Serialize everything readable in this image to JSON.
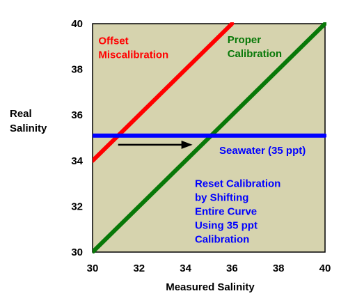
{
  "chart_data": {
    "type": "line",
    "title": "",
    "xlabel": "Measured Salinity",
    "ylabel_lines": [
      "Real",
      "Salinity"
    ],
    "xlim": [
      30,
      40
    ],
    "ylim": [
      30,
      40
    ],
    "x_ticks": [
      30,
      32,
      34,
      36,
      38,
      40
    ],
    "y_ticks": [
      30,
      32,
      34,
      36,
      38,
      40
    ],
    "grid": false,
    "plot_background": "#d6d3ae",
    "series": [
      {
        "key": "offset",
        "color": "#ff0000",
        "points": [
          [
            30,
            34
          ],
          [
            36,
            40
          ]
        ]
      },
      {
        "key": "proper",
        "color": "#087808",
        "points": [
          [
            30,
            30
          ],
          [
            40,
            40
          ]
        ]
      },
      {
        "key": "seawater",
        "color": "#0000ff",
        "points": [
          [
            30,
            35.1
          ],
          [
            40,
            35.1
          ]
        ]
      }
    ],
    "arrow": {
      "color": "#000000",
      "from": [
        31.1,
        34.7
      ],
      "to": [
        34.3,
        34.7
      ]
    },
    "annotations": [
      {
        "key": "offset",
        "color": "#ff0000",
        "lines": [
          "Offset",
          "Miscalibration"
        ],
        "x": 30.25,
        "y": 39.1
      },
      {
        "key": "proper",
        "color": "#087808",
        "lines": [
          "Proper",
          "Calibration"
        ],
        "x": 35.8,
        "y": 39.15
      },
      {
        "key": "seawater",
        "color": "#0000ff",
        "lines": [
          "Seawater (35 ppt)"
        ],
        "x": 35.45,
        "y": 34.3
      },
      {
        "key": "reset",
        "color": "#0000ff",
        "lines": [
          "Reset Calibration",
          "by Shifting",
          "Entire Curve",
          "Using 35 ppt",
          "Calibration"
        ],
        "x": 34.4,
        "y": 32.85
      }
    ]
  }
}
